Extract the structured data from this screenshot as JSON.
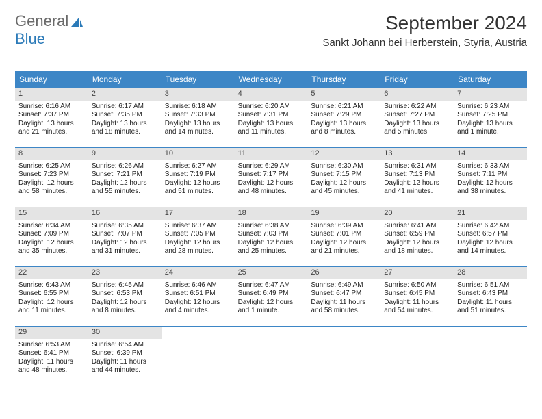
{
  "logo": {
    "part1": "General",
    "part2": "Blue"
  },
  "header": {
    "month": "September 2024",
    "location": "Sankt Johann bei Herberstein, Styria, Austria"
  },
  "colors": {
    "header_bar": "#3d86c6",
    "date_bg": "#e4e4e4",
    "rule": "#3d86c6",
    "logo_gray": "#6a6a6a",
    "logo_blue": "#2b7ab8"
  },
  "day_names": [
    "Sunday",
    "Monday",
    "Tuesday",
    "Wednesday",
    "Thursday",
    "Friday",
    "Saturday"
  ],
  "weeks": [
    [
      {
        "n": 1,
        "sr": "6:16 AM",
        "ss": "7:37 PM",
        "dl": "13 hours and 21 minutes."
      },
      {
        "n": 2,
        "sr": "6:17 AM",
        "ss": "7:35 PM",
        "dl": "13 hours and 18 minutes."
      },
      {
        "n": 3,
        "sr": "6:18 AM",
        "ss": "7:33 PM",
        "dl": "13 hours and 14 minutes."
      },
      {
        "n": 4,
        "sr": "6:20 AM",
        "ss": "7:31 PM",
        "dl": "13 hours and 11 minutes."
      },
      {
        "n": 5,
        "sr": "6:21 AM",
        "ss": "7:29 PM",
        "dl": "13 hours and 8 minutes."
      },
      {
        "n": 6,
        "sr": "6:22 AM",
        "ss": "7:27 PM",
        "dl": "13 hours and 5 minutes."
      },
      {
        "n": 7,
        "sr": "6:23 AM",
        "ss": "7:25 PM",
        "dl": "13 hours and 1 minute."
      }
    ],
    [
      {
        "n": 8,
        "sr": "6:25 AM",
        "ss": "7:23 PM",
        "dl": "12 hours and 58 minutes."
      },
      {
        "n": 9,
        "sr": "6:26 AM",
        "ss": "7:21 PM",
        "dl": "12 hours and 55 minutes."
      },
      {
        "n": 10,
        "sr": "6:27 AM",
        "ss": "7:19 PM",
        "dl": "12 hours and 51 minutes."
      },
      {
        "n": 11,
        "sr": "6:29 AM",
        "ss": "7:17 PM",
        "dl": "12 hours and 48 minutes."
      },
      {
        "n": 12,
        "sr": "6:30 AM",
        "ss": "7:15 PM",
        "dl": "12 hours and 45 minutes."
      },
      {
        "n": 13,
        "sr": "6:31 AM",
        "ss": "7:13 PM",
        "dl": "12 hours and 41 minutes."
      },
      {
        "n": 14,
        "sr": "6:33 AM",
        "ss": "7:11 PM",
        "dl": "12 hours and 38 minutes."
      }
    ],
    [
      {
        "n": 15,
        "sr": "6:34 AM",
        "ss": "7:09 PM",
        "dl": "12 hours and 35 minutes."
      },
      {
        "n": 16,
        "sr": "6:35 AM",
        "ss": "7:07 PM",
        "dl": "12 hours and 31 minutes."
      },
      {
        "n": 17,
        "sr": "6:37 AM",
        "ss": "7:05 PM",
        "dl": "12 hours and 28 minutes."
      },
      {
        "n": 18,
        "sr": "6:38 AM",
        "ss": "7:03 PM",
        "dl": "12 hours and 25 minutes."
      },
      {
        "n": 19,
        "sr": "6:39 AM",
        "ss": "7:01 PM",
        "dl": "12 hours and 21 minutes."
      },
      {
        "n": 20,
        "sr": "6:41 AM",
        "ss": "6:59 PM",
        "dl": "12 hours and 18 minutes."
      },
      {
        "n": 21,
        "sr": "6:42 AM",
        "ss": "6:57 PM",
        "dl": "12 hours and 14 minutes."
      }
    ],
    [
      {
        "n": 22,
        "sr": "6:43 AM",
        "ss": "6:55 PM",
        "dl": "12 hours and 11 minutes."
      },
      {
        "n": 23,
        "sr": "6:45 AM",
        "ss": "6:53 PM",
        "dl": "12 hours and 8 minutes."
      },
      {
        "n": 24,
        "sr": "6:46 AM",
        "ss": "6:51 PM",
        "dl": "12 hours and 4 minutes."
      },
      {
        "n": 25,
        "sr": "6:47 AM",
        "ss": "6:49 PM",
        "dl": "12 hours and 1 minute."
      },
      {
        "n": 26,
        "sr": "6:49 AM",
        "ss": "6:47 PM",
        "dl": "11 hours and 58 minutes."
      },
      {
        "n": 27,
        "sr": "6:50 AM",
        "ss": "6:45 PM",
        "dl": "11 hours and 54 minutes."
      },
      {
        "n": 28,
        "sr": "6:51 AM",
        "ss": "6:43 PM",
        "dl": "11 hours and 51 minutes."
      }
    ],
    [
      {
        "n": 29,
        "sr": "6:53 AM",
        "ss": "6:41 PM",
        "dl": "11 hours and 48 minutes."
      },
      {
        "n": 30,
        "sr": "6:54 AM",
        "ss": "6:39 PM",
        "dl": "11 hours and 44 minutes."
      },
      null,
      null,
      null,
      null,
      null
    ]
  ],
  "labels": {
    "sunrise": "Sunrise:",
    "sunset": "Sunset:",
    "daylight": "Daylight:"
  }
}
